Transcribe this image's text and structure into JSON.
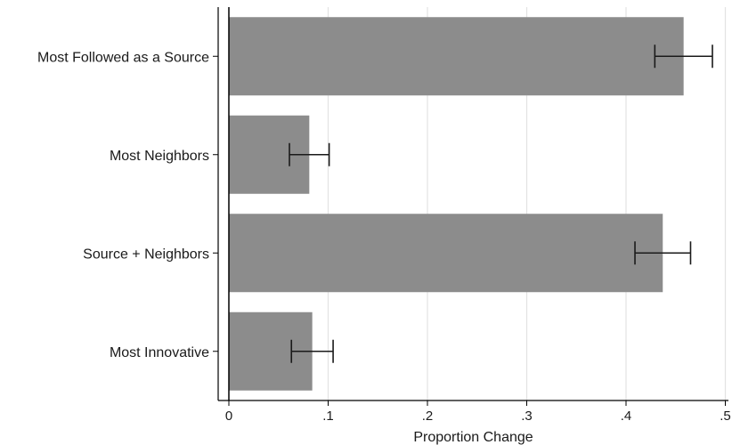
{
  "chart_data": {
    "type": "bar",
    "orientation": "horizontal",
    "categories": [
      "Most Followed as a Source",
      "Most Neighbors",
      "Source + Neighbors",
      "Most Innovative"
    ],
    "values": [
      0.458,
      0.081,
      0.437,
      0.084
    ],
    "ci_low": [
      0.429,
      0.061,
      0.409,
      0.063
    ],
    "ci_high": [
      0.487,
      0.101,
      0.465,
      0.105
    ],
    "xlabel": "Proportion Change",
    "xlim": [
      0,
      0.5
    ],
    "xticks": [
      0,
      0.1,
      0.2,
      0.3,
      0.4,
      0.5
    ],
    "xtick_labels": [
      "0",
      ".1",
      ".2",
      ".3",
      ".4",
      ".5"
    ],
    "grid": "vertical",
    "colors": {
      "bar": "#8c8c8c",
      "grid": "#e3e3e3",
      "axis": "#000000",
      "errorbar": "#1a1a1a"
    }
  }
}
